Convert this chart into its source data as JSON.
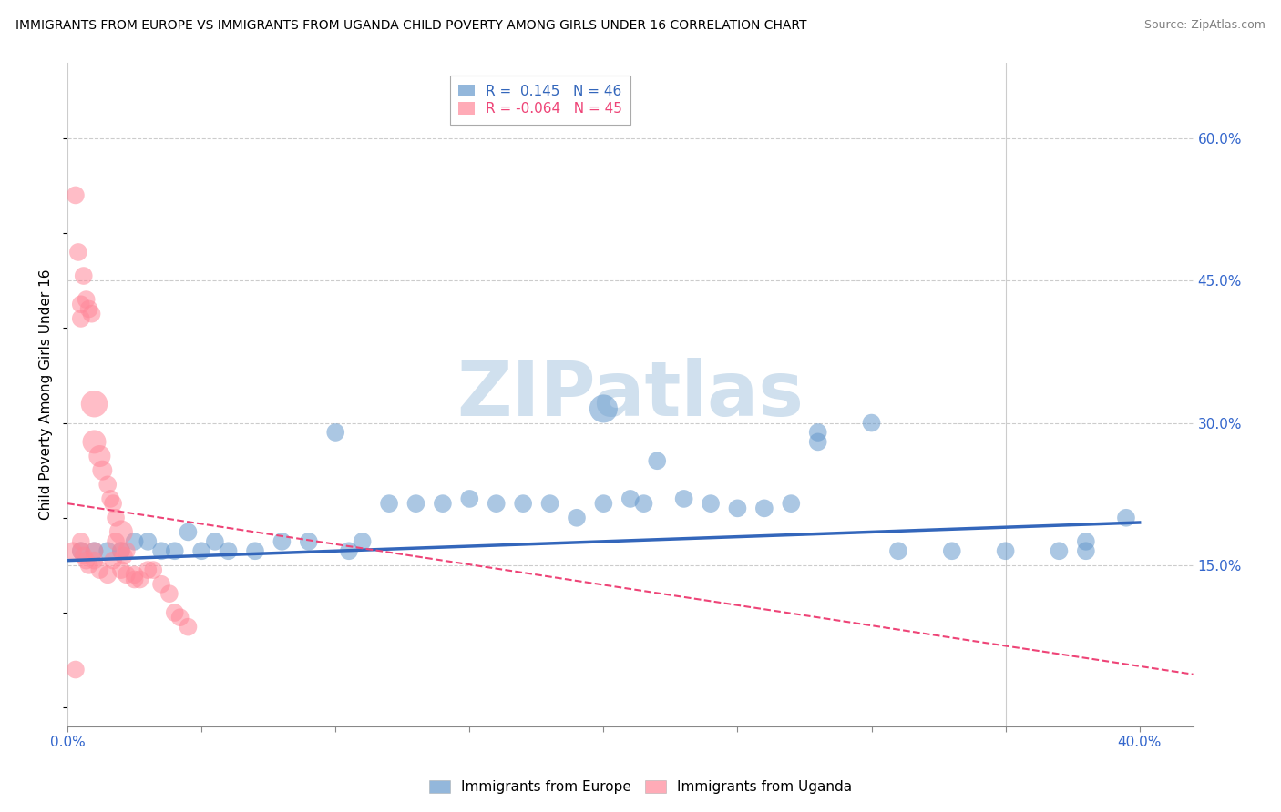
{
  "title": "IMMIGRANTS FROM EUROPE VS IMMIGRANTS FROM UGANDA CHILD POVERTY AMONG GIRLS UNDER 16 CORRELATION CHART",
  "source": "Source: ZipAtlas.com",
  "ylabel": "Child Poverty Among Girls Under 16",
  "xlim": [
    0.0,
    0.42
  ],
  "ylim": [
    -0.02,
    0.68
  ],
  "ytick_labels_right": [
    "60.0%",
    "45.0%",
    "30.0%",
    "15.0%"
  ],
  "ytick_vals_right": [
    0.6,
    0.45,
    0.3,
    0.15
  ],
  "legend_europe_R": "0.145",
  "legend_europe_N": "46",
  "legend_uganda_R": "-0.064",
  "legend_uganda_N": "45",
  "color_europe": "#6699CC",
  "color_uganda": "#FF8899",
  "color_europe_line": "#3366BB",
  "color_uganda_line": "#EE4477",
  "watermark": "ZIPatlas",
  "watermark_color": "#D0E0EE",
  "europe_scatter": {
    "x": [
      0.005,
      0.01,
      0.015,
      0.02,
      0.025,
      0.03,
      0.035,
      0.04,
      0.045,
      0.05,
      0.055,
      0.06,
      0.07,
      0.08,
      0.09,
      0.1,
      0.105,
      0.11,
      0.12,
      0.13,
      0.14,
      0.15,
      0.16,
      0.17,
      0.18,
      0.19,
      0.2,
      0.21,
      0.215,
      0.22,
      0.23,
      0.24,
      0.25,
      0.26,
      0.27,
      0.28,
      0.3,
      0.31,
      0.33,
      0.35,
      0.37,
      0.38,
      0.395,
      0.2,
      0.28,
      0.38
    ],
    "y": [
      0.165,
      0.165,
      0.165,
      0.165,
      0.175,
      0.175,
      0.165,
      0.165,
      0.185,
      0.165,
      0.175,
      0.165,
      0.165,
      0.175,
      0.175,
      0.29,
      0.165,
      0.175,
      0.215,
      0.215,
      0.215,
      0.22,
      0.215,
      0.215,
      0.215,
      0.2,
      0.215,
      0.22,
      0.215,
      0.26,
      0.22,
      0.215,
      0.21,
      0.21,
      0.215,
      0.28,
      0.3,
      0.165,
      0.165,
      0.165,
      0.165,
      0.165,
      0.2,
      0.315,
      0.29,
      0.175
    ],
    "size": [
      200,
      200,
      200,
      200,
      200,
      200,
      200,
      200,
      200,
      200,
      200,
      200,
      200,
      200,
      200,
      200,
      200,
      200,
      200,
      200,
      200,
      200,
      200,
      200,
      200,
      200,
      200,
      200,
      200,
      200,
      200,
      200,
      200,
      200,
      200,
      200,
      200,
      200,
      200,
      200,
      200,
      200,
      200,
      500,
      200,
      200
    ]
  },
  "uganda_scatter": {
    "x": [
      0.003,
      0.004,
      0.005,
      0.005,
      0.006,
      0.007,
      0.008,
      0.009,
      0.01,
      0.01,
      0.012,
      0.013,
      0.015,
      0.016,
      0.017,
      0.018,
      0.02,
      0.02,
      0.021,
      0.022,
      0.025,
      0.027,
      0.03,
      0.032,
      0.035,
      0.038,
      0.04,
      0.042,
      0.045,
      0.005,
      0.005,
      0.006,
      0.007,
      0.008,
      0.01,
      0.01,
      0.012,
      0.015,
      0.017,
      0.018,
      0.02,
      0.022,
      0.025,
      0.002,
      0.003
    ],
    "y": [
      0.54,
      0.48,
      0.425,
      0.41,
      0.455,
      0.43,
      0.42,
      0.415,
      0.32,
      0.28,
      0.265,
      0.25,
      0.235,
      0.22,
      0.215,
      0.2,
      0.185,
      0.165,
      0.16,
      0.165,
      0.14,
      0.135,
      0.145,
      0.145,
      0.13,
      0.12,
      0.1,
      0.095,
      0.085,
      0.175,
      0.165,
      0.16,
      0.155,
      0.15,
      0.165,
      0.155,
      0.145,
      0.14,
      0.155,
      0.175,
      0.145,
      0.14,
      0.135,
      0.165,
      0.04
    ],
    "size": [
      200,
      200,
      200,
      200,
      200,
      200,
      200,
      200,
      450,
      350,
      300,
      250,
      200,
      200,
      200,
      200,
      350,
      200,
      200,
      200,
      200,
      200,
      200,
      200,
      200,
      200,
      200,
      200,
      200,
      200,
      200,
      200,
      200,
      200,
      200,
      200,
      200,
      200,
      200,
      200,
      200,
      200,
      200,
      200,
      200
    ]
  },
  "europe_line": {
    "x0": 0.0,
    "x1": 0.4,
    "y0": 0.155,
    "y1": 0.195
  },
  "uganda_line": {
    "x0": 0.0,
    "x1": 0.42,
    "y0": 0.215,
    "y1": 0.035
  }
}
